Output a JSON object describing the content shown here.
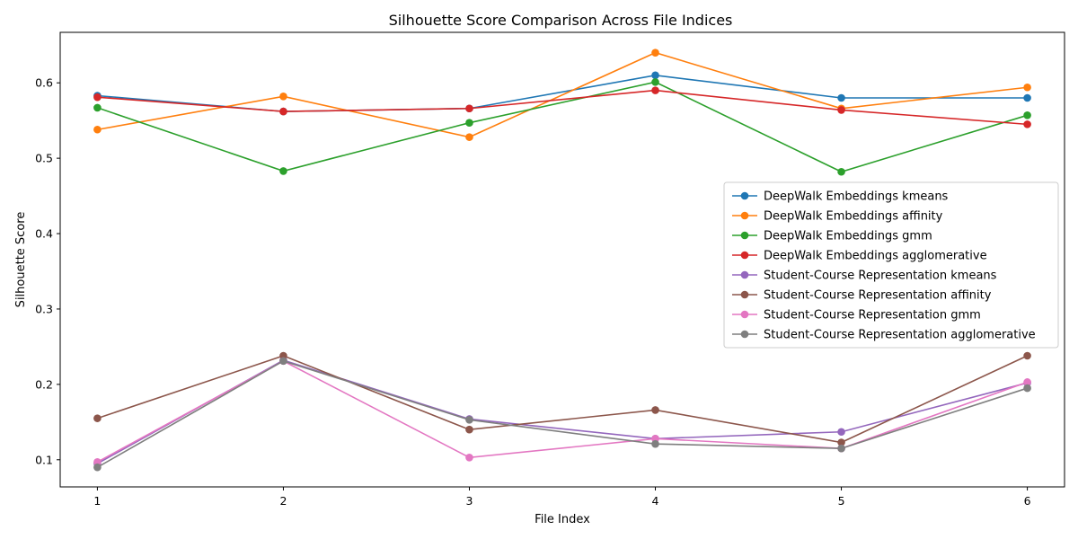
{
  "chart_data": {
    "type": "line",
    "title": "Silhouette Score Comparison Across File Indices",
    "xlabel": "File Index",
    "ylabel": "Silhouette Score",
    "x": [
      1,
      2,
      3,
      4,
      5,
      6
    ],
    "xticks": [
      "1",
      "2",
      "3",
      "4",
      "5",
      "6"
    ],
    "yticks": [
      "0.1",
      "0.2",
      "0.3",
      "0.4",
      "0.5",
      "0.6"
    ],
    "xlim": [
      0.8,
      6.2
    ],
    "ylim": [
      0.064,
      0.667
    ],
    "grid": false,
    "legend_position": "center-right",
    "series": [
      {
        "name": "DeepWalk Embeddings kmeans",
        "color": "#1f77b4",
        "values": [
          0.583,
          0.562,
          0.566,
          0.61,
          0.58,
          0.58
        ]
      },
      {
        "name": "DeepWalk Embeddings affinity",
        "color": "#ff7f0e",
        "values": [
          0.538,
          0.582,
          0.528,
          0.64,
          0.566,
          0.594
        ]
      },
      {
        "name": "DeepWalk Embeddings gmm",
        "color": "#2ca02c",
        "values": [
          0.567,
          0.483,
          0.547,
          0.601,
          0.482,
          0.557
        ]
      },
      {
        "name": "DeepWalk Embeddings agglomerative",
        "color": "#d62728",
        "values": [
          0.581,
          0.562,
          0.566,
          0.59,
          0.564,
          0.545
        ]
      },
      {
        "name": "Student-Course Representation kmeans",
        "color": "#9467bd",
        "values": [
          0.095,
          0.232,
          0.154,
          0.128,
          0.137,
          0.202
        ]
      },
      {
        "name": "Student-Course Representation affinity",
        "color": "#8c564b",
        "values": [
          0.155,
          0.238,
          0.14,
          0.166,
          0.123,
          0.238
        ]
      },
      {
        "name": "Student-Course Representation gmm",
        "color": "#e377c2",
        "values": [
          0.097,
          0.231,
          0.103,
          0.128,
          0.115,
          0.203
        ]
      },
      {
        "name": "Student-Course Representation agglomerative",
        "color": "#7f7f7f",
        "values": [
          0.09,
          0.231,
          0.153,
          0.121,
          0.115,
          0.195
        ]
      }
    ]
  }
}
